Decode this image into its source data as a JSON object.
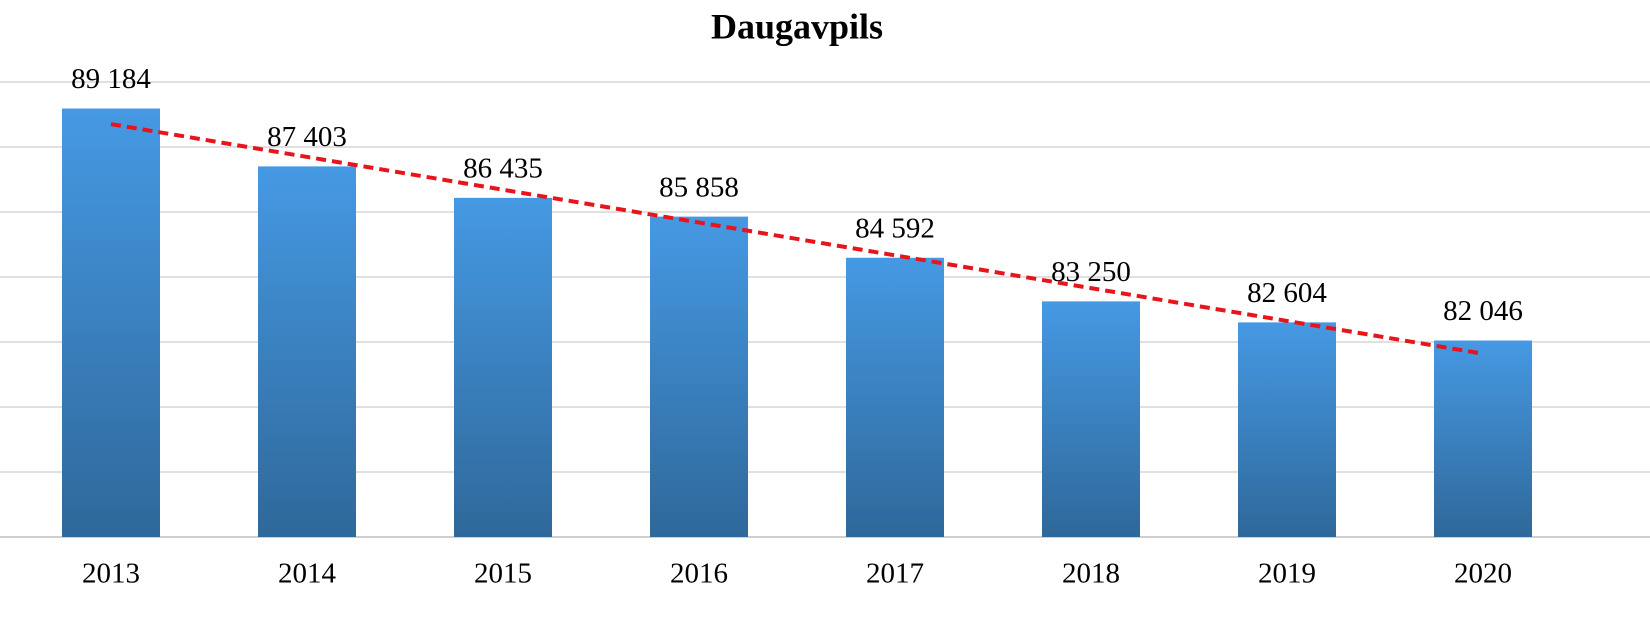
{
  "chart_data": {
    "type": "bar",
    "title": "Daugavpils",
    "categories": [
      "2013",
      "2014",
      "2015",
      "2016",
      "2017",
      "2018",
      "2019",
      "2020"
    ],
    "values": [
      89184,
      87403,
      86435,
      85858,
      84592,
      83250,
      82604,
      82046
    ],
    "value_labels": [
      "89 184",
      "87 403",
      "86 435",
      "85 858",
      "84 592",
      "83 250",
      "82 604",
      "82 046"
    ],
    "color": "#4599e3",
    "ylim": [
      76000,
      90000
    ],
    "yticks": [
      76000,
      78000,
      80000,
      82000,
      84000,
      86000,
      88000,
      90000
    ],
    "grid": true,
    "trendline": {
      "type": "linear",
      "color": "#e8141c"
    }
  }
}
